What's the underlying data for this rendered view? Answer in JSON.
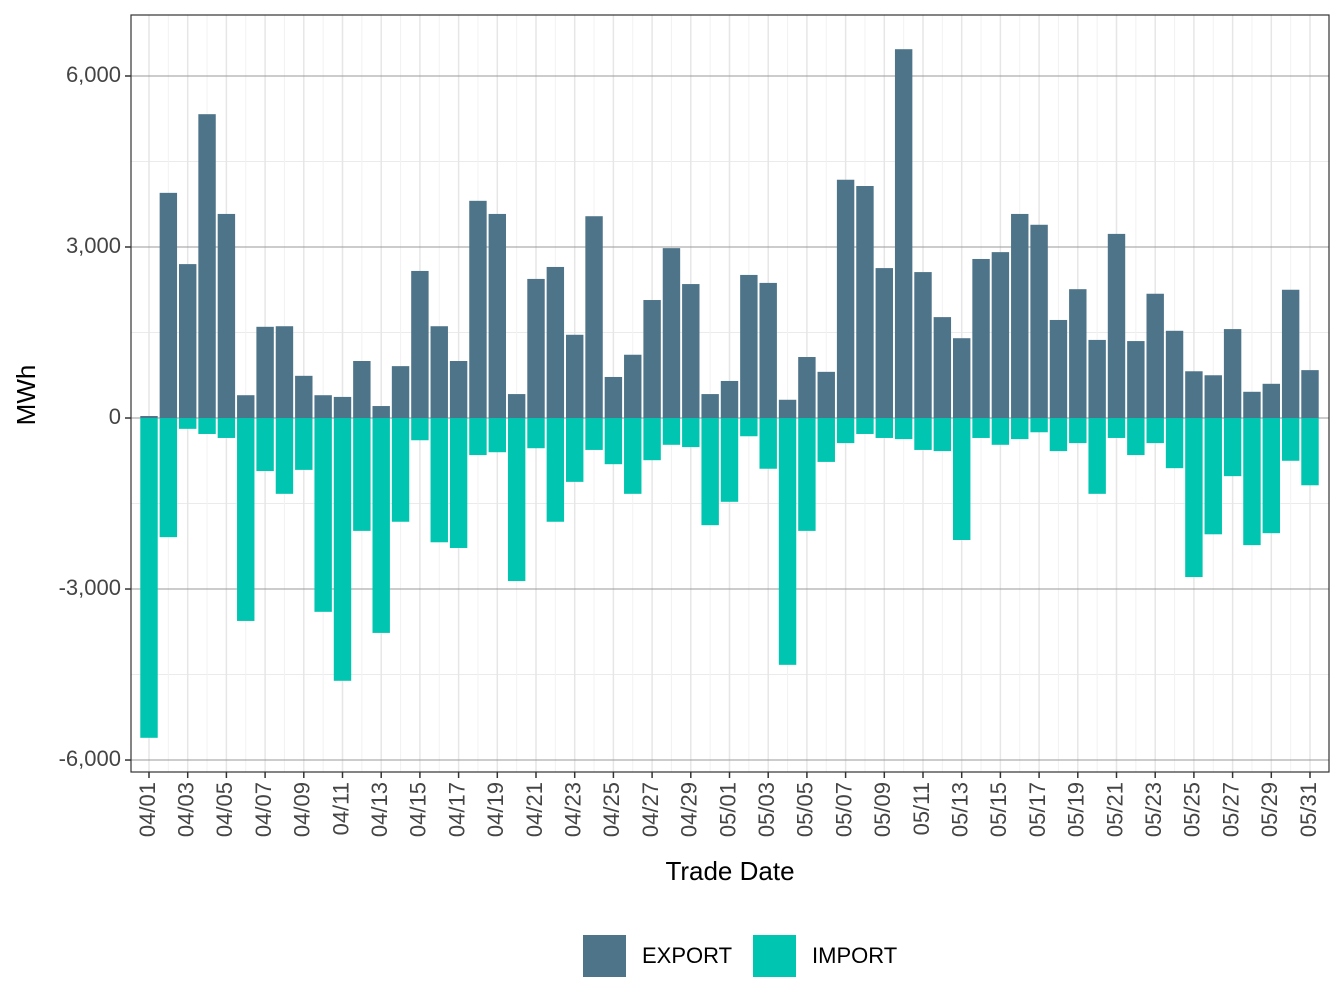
{
  "chart_data": {
    "type": "bar",
    "x_label": "Trade Date",
    "y_label": "MWh",
    "categories": [
      "04/01",
      null,
      "04/03",
      null,
      "04/05",
      null,
      "04/07",
      null,
      "04/09",
      null,
      "04/11",
      null,
      "04/13",
      null,
      "04/15",
      null,
      "04/17",
      null,
      "04/19",
      null,
      "04/21",
      null,
      "04/23",
      null,
      "04/25",
      null,
      "04/27",
      null,
      "04/29",
      null,
      "05/01",
      null,
      "05/03",
      null,
      "05/05",
      null,
      "05/07",
      null,
      "05/09",
      null,
      "05/11",
      null,
      "05/13",
      null,
      "05/15",
      null,
      "05/17",
      null,
      "05/19",
      null,
      "05/21",
      null,
      "05/23",
      null,
      "05/25",
      null,
      "05/27",
      null,
      "05/29",
      null,
      "05/31"
    ],
    "series": [
      {
        "name": "EXPORT",
        "color": "#4e7489",
        "values": [
          35,
          3950,
          2700,
          5330,
          3580,
          400,
          1600,
          1610,
          740,
          400,
          370,
          1000,
          210,
          910,
          2580,
          1610,
          1000,
          3810,
          3580,
          420,
          2440,
          2650,
          1460,
          3540,
          720,
          1110,
          2070,
          2980,
          2350,
          420,
          650,
          2510,
          2370,
          320,
          1070,
          810,
          4180,
          4070,
          2630,
          6470,
          2560,
          1770,
          1400,
          2790,
          2910,
          3580,
          3390,
          1720,
          2260,
          1370,
          3230,
          1350,
          2180,
          1530,
          820,
          750,
          1560,
          460,
          600,
          2250,
          840
        ]
      },
      {
        "name": "IMPORT",
        "color": "#00c5b0",
        "values": [
          -5610,
          -2090,
          -190,
          -280,
          -350,
          -3560,
          -930,
          -1330,
          -910,
          -3400,
          -4610,
          -1980,
          -3770,
          -1820,
          -390,
          -2180,
          -2280,
          -650,
          -600,
          -2860,
          -530,
          -1820,
          -1120,
          -560,
          -810,
          -1330,
          -740,
          -470,
          -510,
          -1880,
          -1470,
          -320,
          -890,
          -4330,
          -1980,
          -770,
          -440,
          -280,
          -350,
          -370,
          -560,
          -580,
          -2140,
          -350,
          -470,
          -370,
          -250,
          -580,
          -440,
          -1330,
          -350,
          -650,
          -440,
          -880,
          -2790,
          -2040,
          -1020,
          -2230,
          -2020,
          -750,
          -1180
        ]
      }
    ],
    "ylim": [
      -6210,
      7070
    ],
    "yticks": [
      {
        "value": -6000,
        "label": "-6,000"
      },
      {
        "value": -3000,
        "label": "-3,000"
      },
      0,
      {
        "value": 3000,
        "label": "3,000"
      },
      {
        "value": 6000,
        "label": "6,000"
      }
    ],
    "grid": true,
    "legend": "bottom"
  }
}
